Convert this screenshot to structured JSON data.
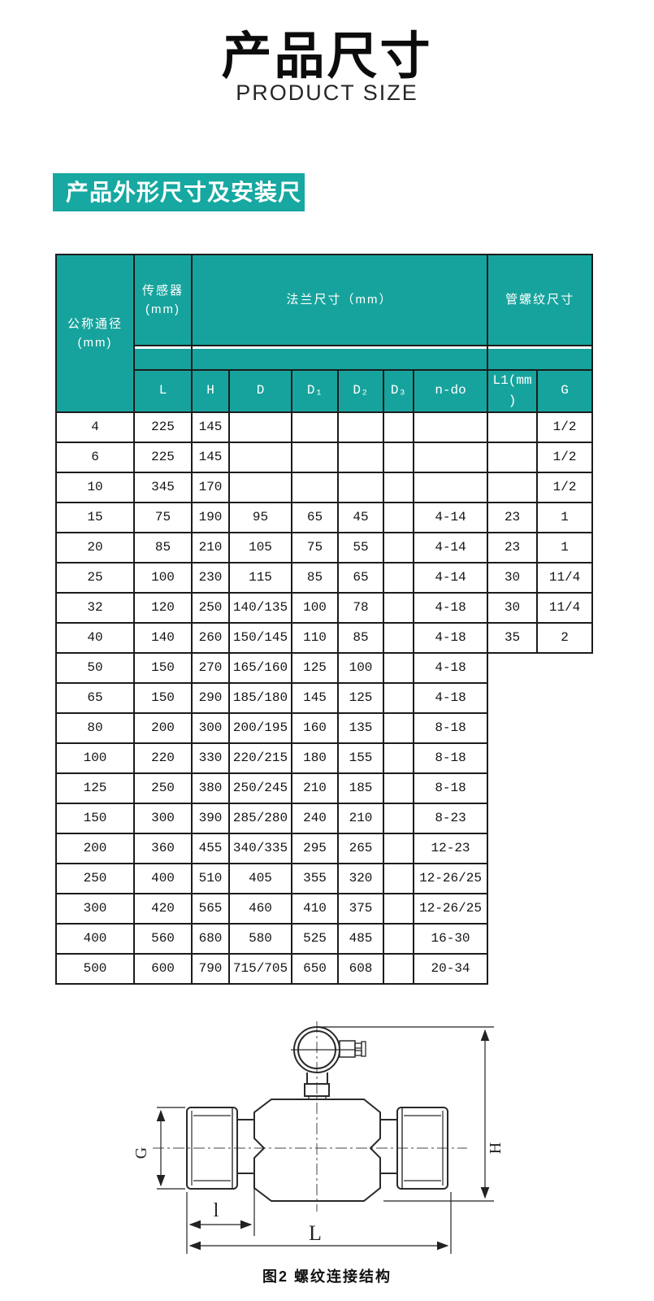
{
  "page": {
    "title": "产品尺寸",
    "subtitle": "PRODUCT SIZE"
  },
  "section": {
    "banner": "产品外形尺寸及安装尺寸"
  },
  "colors": {
    "teal_header": "#17a39d",
    "teal_banner": "#16a8a1",
    "border": "#1c1c1c"
  },
  "table": {
    "groups": {
      "col1": "公称通径\n(mm)",
      "sensor": "传感器\n(mm)",
      "flange": "法兰尺寸（mm）",
      "thread": "管螺纹尺寸"
    },
    "subheaders": [
      "L",
      "H",
      "D",
      "D₁",
      "D₂",
      "D₃",
      "n-do",
      "L1(mm\n)",
      "G"
    ],
    "rows": [
      [
        "4",
        "225",
        "145",
        "",
        "",
        "",
        "",
        "",
        "",
        "1/2"
      ],
      [
        "6",
        "225",
        "145",
        "",
        "",
        "",
        "",
        "",
        "",
        "1/2"
      ],
      [
        "10",
        "345",
        "170",
        "",
        "",
        "",
        "",
        "",
        "",
        "1/2"
      ],
      [
        "15",
        "75",
        "190",
        "95",
        "65",
        "45",
        "",
        "4-14",
        "23",
        "1"
      ],
      [
        "20",
        "85",
        "210",
        "105",
        "75",
        "55",
        "",
        "4-14",
        "23",
        "1"
      ],
      [
        "25",
        "100",
        "230",
        "115",
        "85",
        "65",
        "",
        "4-14",
        "30",
        "11/4"
      ],
      [
        "32",
        "120",
        "250",
        "140/135",
        "100",
        "78",
        "",
        "4-18",
        "30",
        "11/4"
      ],
      [
        "40",
        "140",
        "260",
        "150/145",
        "110",
        "85",
        "",
        "4-18",
        "35",
        "2"
      ],
      [
        "50",
        "150",
        "270",
        "165/160",
        "125",
        "100",
        "",
        "4-18"
      ],
      [
        "65",
        "150",
        "290",
        "185/180",
        "145",
        "125",
        "",
        "4-18"
      ],
      [
        "80",
        "200",
        "300",
        "200/195",
        "160",
        "135",
        "",
        "8-18"
      ],
      [
        "100",
        "220",
        "330",
        "220/215",
        "180",
        "155",
        "",
        "8-18"
      ],
      [
        "125",
        "250",
        "380",
        "250/245",
        "210",
        "185",
        "",
        "8-18"
      ],
      [
        "150",
        "300",
        "390",
        "285/280",
        "240",
        "210",
        "",
        "8-23"
      ],
      [
        "200",
        "360",
        "455",
        "340/335",
        "295",
        "265",
        "",
        "12-23"
      ],
      [
        "250",
        "400",
        "510",
        "405",
        "355",
        "320",
        "",
        "12-26/25"
      ],
      [
        "300",
        "420",
        "565",
        "460",
        "410",
        "375",
        "",
        "12-26/25"
      ],
      [
        "400",
        "560",
        "680",
        "580",
        "525",
        "485",
        "",
        "16-30"
      ],
      [
        "500",
        "600",
        "790",
        "715/705",
        "650",
        "608",
        "",
        "20-34"
      ]
    ]
  },
  "diagram": {
    "labels": {
      "g": "G",
      "h": "H",
      "l": "l",
      "length": "L"
    },
    "caption": "图2  螺纹连接结构"
  }
}
